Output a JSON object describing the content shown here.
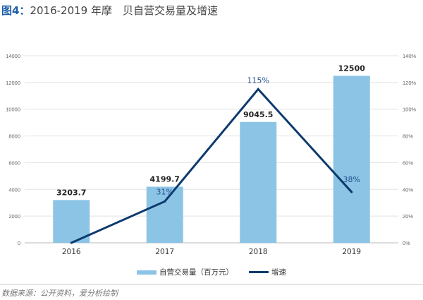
{
  "title": {
    "figure_label": "图4：",
    "text": "2016-2019 年摩　贝自营交易量及增速"
  },
  "chart_data": {
    "type": "bar+line",
    "categories": [
      "2016",
      "2017",
      "2018",
      "2019"
    ],
    "series": [
      {
        "name": "自营交易量（百万元）",
        "type": "bar",
        "axis": "left",
        "values": [
          3203.7,
          4199.7,
          9045.5,
          12500
        ],
        "labels": [
          "3203.7",
          "4199.7",
          "9045.5",
          "12500"
        ],
        "color": "#8cc4e6"
      },
      {
        "name": "增速",
        "type": "line",
        "axis": "right",
        "values": [
          0,
          31,
          115,
          38
        ],
        "labels": [
          "",
          "31%",
          "115%",
          "38%"
        ],
        "color": "#0d3a6e"
      }
    ],
    "y_left": {
      "range": [
        0,
        14000
      ],
      "ticks": [
        "0",
        "2000",
        "4000",
        "6000",
        "8000",
        "10000",
        "12000",
        "14000"
      ]
    },
    "y_right": {
      "range": [
        0,
        140
      ],
      "ticks": [
        "0%",
        "20%",
        "40%",
        "60%",
        "80%",
        "100%",
        "120%",
        "140%"
      ]
    },
    "grid": true,
    "legend_position": "bottom"
  },
  "source": "数据来源：公开资料，爱分析绘制"
}
